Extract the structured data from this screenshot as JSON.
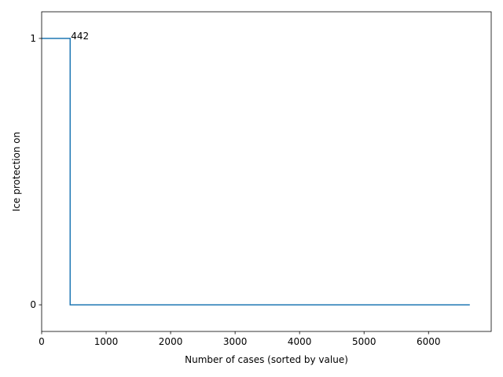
{
  "chart_data": {
    "type": "line",
    "xlabel": "Number of cases (sorted by value)",
    "ylabel": "Ice protection on",
    "x": [
      0,
      442,
      442,
      6640
    ],
    "series": [
      {
        "color": "#1f77b4",
        "values": [
          1,
          1,
          0,
          0
        ]
      }
    ],
    "xlim": [
      0,
      6972
    ],
    "ylim": [
      -0.1,
      1.1
    ],
    "xticks": [
      0,
      1000,
      2000,
      3000,
      4000,
      5000,
      6000
    ],
    "yticks": [
      0,
      1
    ],
    "grid": false,
    "annotations": [
      {
        "text": "442",
        "x": 442,
        "y": 1
      }
    ]
  }
}
